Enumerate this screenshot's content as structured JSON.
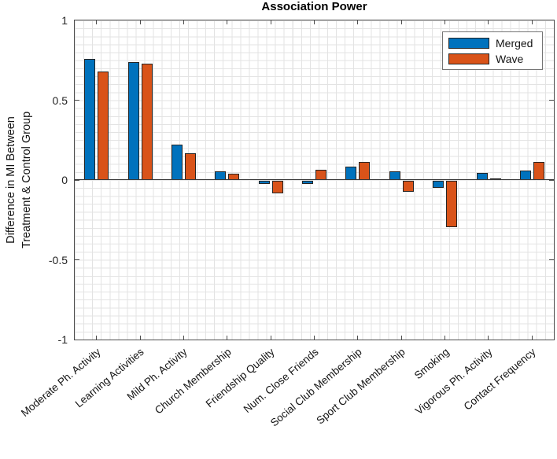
{
  "title": "Association Power",
  "axes": {
    "ylabel_lines": [
      "Difference in MI Between",
      "Treatment & Control Group"
    ],
    "ytick_values": [
      1,
      0.5,
      0,
      -0.5,
      -1
    ],
    "ytick_labels": [
      "1",
      "0.5",
      "0",
      "-0.5",
      "-1"
    ],
    "ylim": [
      -1,
      1
    ],
    "grid": "minor-dotted"
  },
  "colors": {
    "merged": "#0072BD",
    "wave": "#D95319",
    "axis": "#4d4d4d",
    "bar_edge": "#242424",
    "grid": "#e3e3e3"
  },
  "chart_data": {
    "type": "bar",
    "title": "Association Power",
    "xlabel": "",
    "ylabel": "Difference in MI Between Treatment & Control Group",
    "ylim": [
      -1,
      1
    ],
    "yticks": [
      1,
      0.5,
      0,
      -0.5,
      -1
    ],
    "grid": true,
    "legend_position": "top-right",
    "categories": [
      "Moderate Ph. Activity",
      "Learning Activities",
      "Mild Ph. Activity",
      "Church Membership",
      "Friendship Quality",
      "Num. Close Friends",
      "Social Club Membership",
      "Sport Club Membership",
      "Smoking",
      "Vigorous Ph. Activity",
      "Contact Frequency"
    ],
    "series": [
      {
        "name": "Merged",
        "color": "#0072BD",
        "values": [
          0.76,
          0.74,
          0.22,
          0.055,
          -0.02,
          -0.02,
          0.085,
          0.055,
          -0.045,
          0.045,
          0.06
        ]
      },
      {
        "name": "Wave",
        "color": "#D95319",
        "values": [
          0.68,
          0.73,
          0.17,
          0.04,
          -0.08,
          0.065,
          0.115,
          -0.07,
          -0.29,
          0.012,
          0.115
        ]
      }
    ]
  }
}
